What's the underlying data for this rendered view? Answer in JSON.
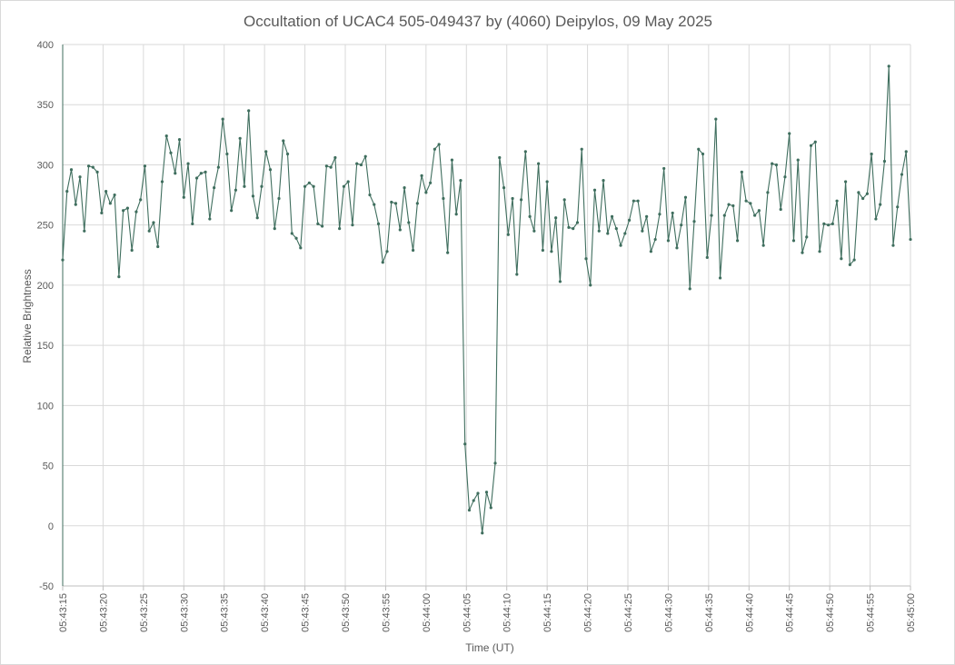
{
  "chart_data": {
    "type": "line",
    "title": "Occultation of UCAC4 505-049437 by (4060) Deipylos, 09 May 2025",
    "xlabel": "Time (UT)",
    "ylabel": "Relative Brightness",
    "ylim": [
      -50,
      400
    ],
    "yticks": [
      -50,
      0,
      50,
      100,
      150,
      200,
      250,
      300,
      350,
      400
    ],
    "xlim_seconds": [
      0,
      105
    ],
    "xticks": [
      "05:43:15",
      "05:43:20",
      "05:43:25",
      "05:43:30",
      "05:43:35",
      "05:43:40",
      "05:43:45",
      "05:43:50",
      "05:43:55",
      "05:44:00",
      "05:44:05",
      "05:44:10",
      "05:44:15",
      "05:44:20",
      "05:44:25",
      "05:44:30",
      "05:44:35",
      "05:44:40",
      "05:44:45",
      "05:44:50",
      "05:44:55",
      "05:45:00"
    ],
    "grid": true,
    "legend": "none",
    "series": [
      {
        "color": "#3f6e5e",
        "x_start": "05:43:15",
        "x_end": "05:45:00",
        "values": [
          221,
          278,
          296,
          267,
          290,
          245,
          299,
          298,
          294,
          260,
          278,
          268,
          275,
          207,
          262,
          264,
          229,
          261,
          271,
          299,
          245,
          252,
          232,
          286,
          324,
          310,
          293,
          321,
          273,
          301,
          251,
          289,
          293,
          294,
          255,
          281,
          298,
          338,
          309,
          262,
          279,
          322,
          282,
          345,
          274,
          256,
          282,
          311,
          296,
          247,
          272,
          320,
          309,
          243,
          239,
          231,
          282,
          285,
          282,
          251,
          249,
          299,
          298,
          306,
          247,
          282,
          286,
          250,
          301,
          300,
          307,
          275,
          267,
          251,
          219,
          228,
          269,
          268,
          246,
          281,
          252,
          229,
          268,
          291,
          277,
          285,
          313,
          317,
          272,
          227,
          304,
          259,
          287,
          68,
          13,
          21,
          27,
          -6,
          28,
          15,
          52,
          306,
          281,
          242,
          272,
          209,
          271,
          311,
          257,
          245,
          301,
          229,
          286,
          228,
          256,
          203,
          271,
          248,
          247,
          252,
          313,
          222,
          200,
          279,
          245,
          287,
          243,
          257,
          247,
          233,
          243,
          254,
          270,
          270,
          245,
          257,
          228,
          238,
          259,
          297,
          237,
          260,
          231,
          250,
          273,
          197,
          253,
          313,
          309,
          223,
          258,
          338,
          206,
          258,
          267,
          266,
          237,
          294,
          270,
          268,
          258,
          262,
          233,
          277,
          301,
          300,
          263,
          290,
          326,
          237,
          304,
          227,
          240,
          316,
          319,
          228,
          251,
          250,
          251,
          270,
          222,
          286,
          217,
          221,
          277,
          272,
          276,
          309,
          255,
          267,
          303,
          382,
          233,
          265,
          292,
          311,
          238
        ]
      }
    ]
  }
}
